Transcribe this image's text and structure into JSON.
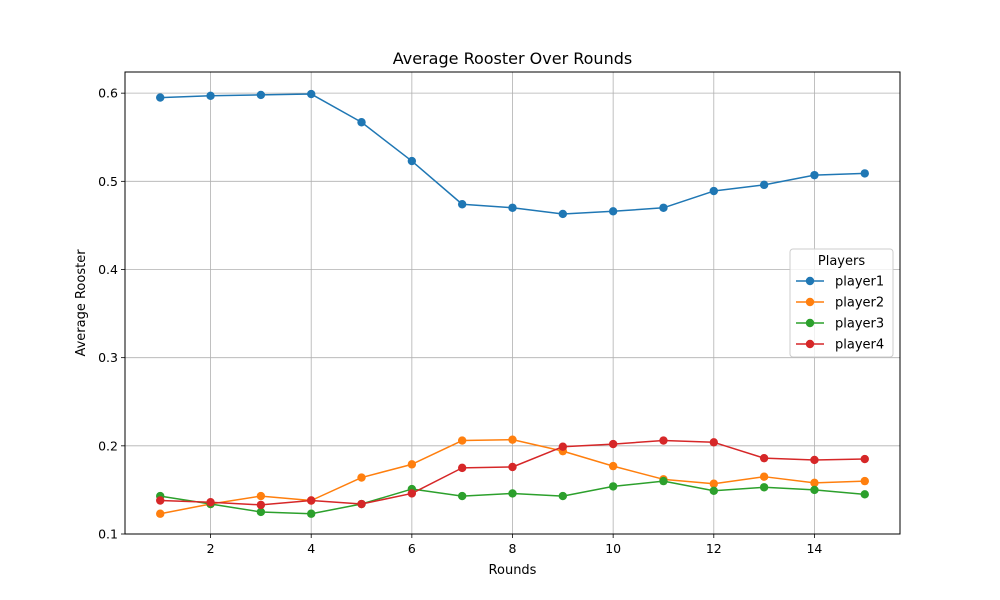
{
  "chart_data": {
    "type": "line",
    "title": "Average Rooster Over Rounds",
    "xlabel": "Rounds",
    "ylabel": "Average Rooster",
    "xlim": [
      0.3,
      15.7
    ],
    "ylim": [
      0.1,
      0.624
    ],
    "xticks": [
      2,
      4,
      6,
      8,
      10,
      12,
      14
    ],
    "yticks": [
      0.1,
      0.2,
      0.3,
      0.4,
      0.5,
      0.6
    ],
    "grid": true,
    "legend": {
      "title": "Players",
      "placement": "right"
    },
    "x": [
      1,
      2,
      3,
      4,
      5,
      6,
      7,
      8,
      9,
      10,
      11,
      12,
      13,
      14,
      15
    ],
    "series": [
      {
        "name": "player1",
        "color": "#1f77b4",
        "values": [
          0.595,
          0.597,
          0.598,
          0.599,
          0.567,
          0.523,
          0.474,
          0.47,
          0.463,
          0.466,
          0.47,
          0.489,
          0.496,
          0.507,
          0.509
        ]
      },
      {
        "name": "player2",
        "color": "#ff7f0e",
        "values": [
          0.123,
          0.134,
          0.143,
          0.138,
          0.164,
          0.179,
          0.206,
          0.207,
          0.194,
          0.177,
          0.162,
          0.157,
          0.165,
          0.158,
          0.16
        ]
      },
      {
        "name": "player3",
        "color": "#2ca02c",
        "values": [
          0.143,
          0.134,
          0.125,
          0.123,
          0.134,
          0.151,
          0.143,
          0.146,
          0.143,
          0.154,
          0.16,
          0.149,
          0.153,
          0.15,
          0.145
        ]
      },
      {
        "name": "player4",
        "color": "#d62728",
        "values": [
          0.138,
          0.136,
          0.133,
          0.138,
          0.134,
          0.146,
          0.175,
          0.176,
          0.199,
          0.202,
          0.206,
          0.204,
          0.186,
          0.184,
          0.185
        ]
      }
    ]
  }
}
